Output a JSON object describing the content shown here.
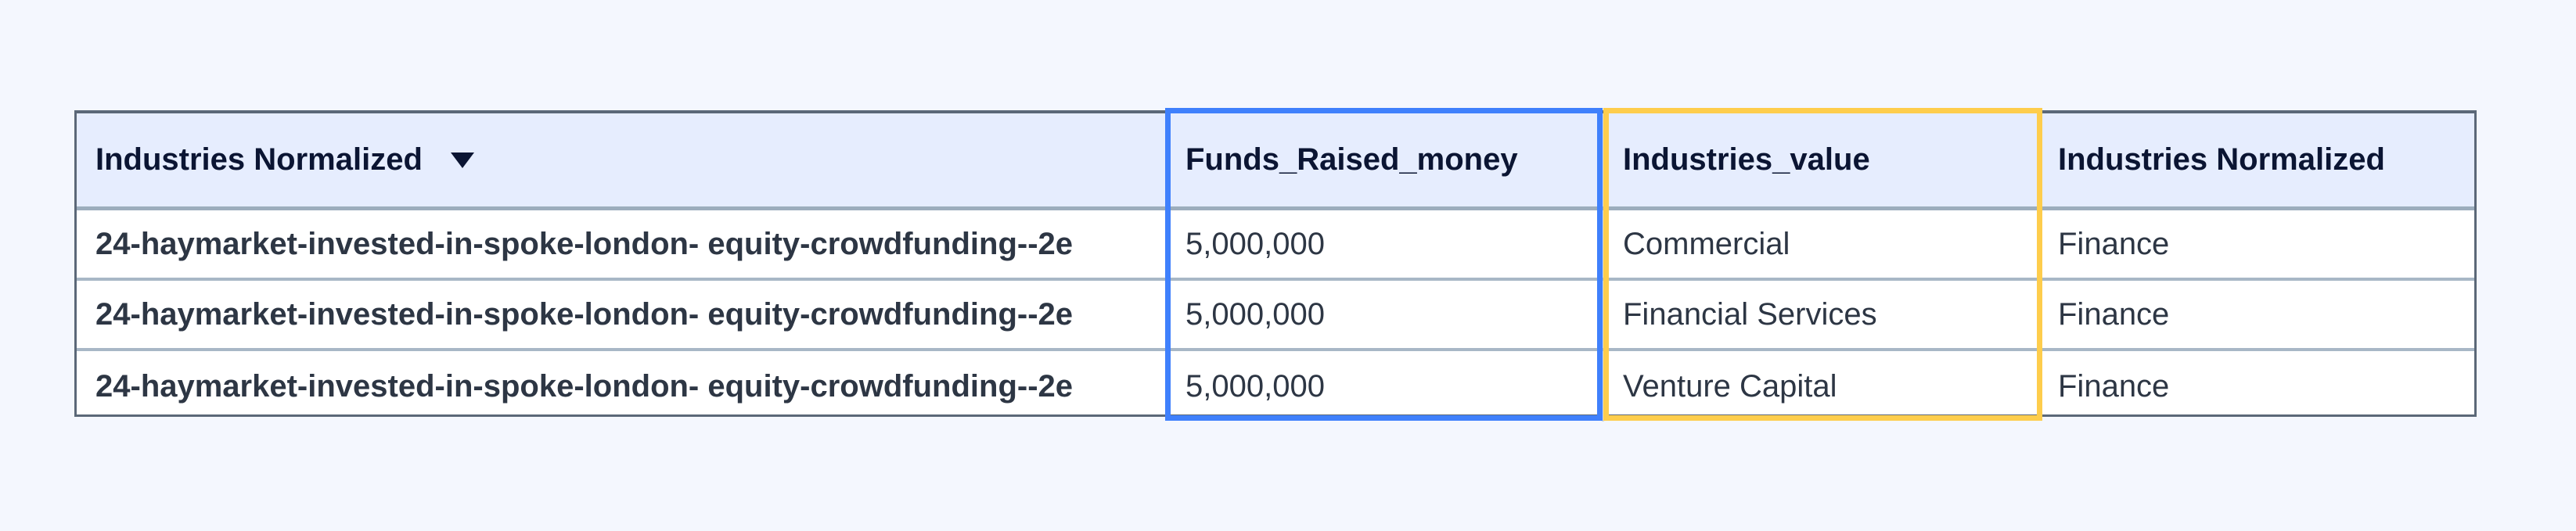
{
  "table": {
    "columns": [
      {
        "label": "Industries Normalized",
        "sort_icon": "triangle-down-icon"
      },
      {
        "label": "Funds_Raised_money"
      },
      {
        "label": "Industries_value"
      },
      {
        "label": "Industries Normalized"
      }
    ],
    "rows": [
      [
        "24-haymarket-invested-in-spoke-london- equity-crowdfunding--2e",
        "5,000,000",
        "Commercial",
        "Finance"
      ],
      [
        "24-haymarket-invested-in-spoke-london- equity-crowdfunding--2e",
        "5,000,000",
        "Financial Services",
        "Finance"
      ],
      [
        "24-haymarket-invested-in-spoke-london- equity-crowdfunding--2e",
        "5,000,000",
        "Venture Capital",
        "Finance"
      ]
    ]
  },
  "highlights": {
    "funds_column_color": "#3f80fc",
    "industries_value_column_color": "#fecd4c"
  }
}
